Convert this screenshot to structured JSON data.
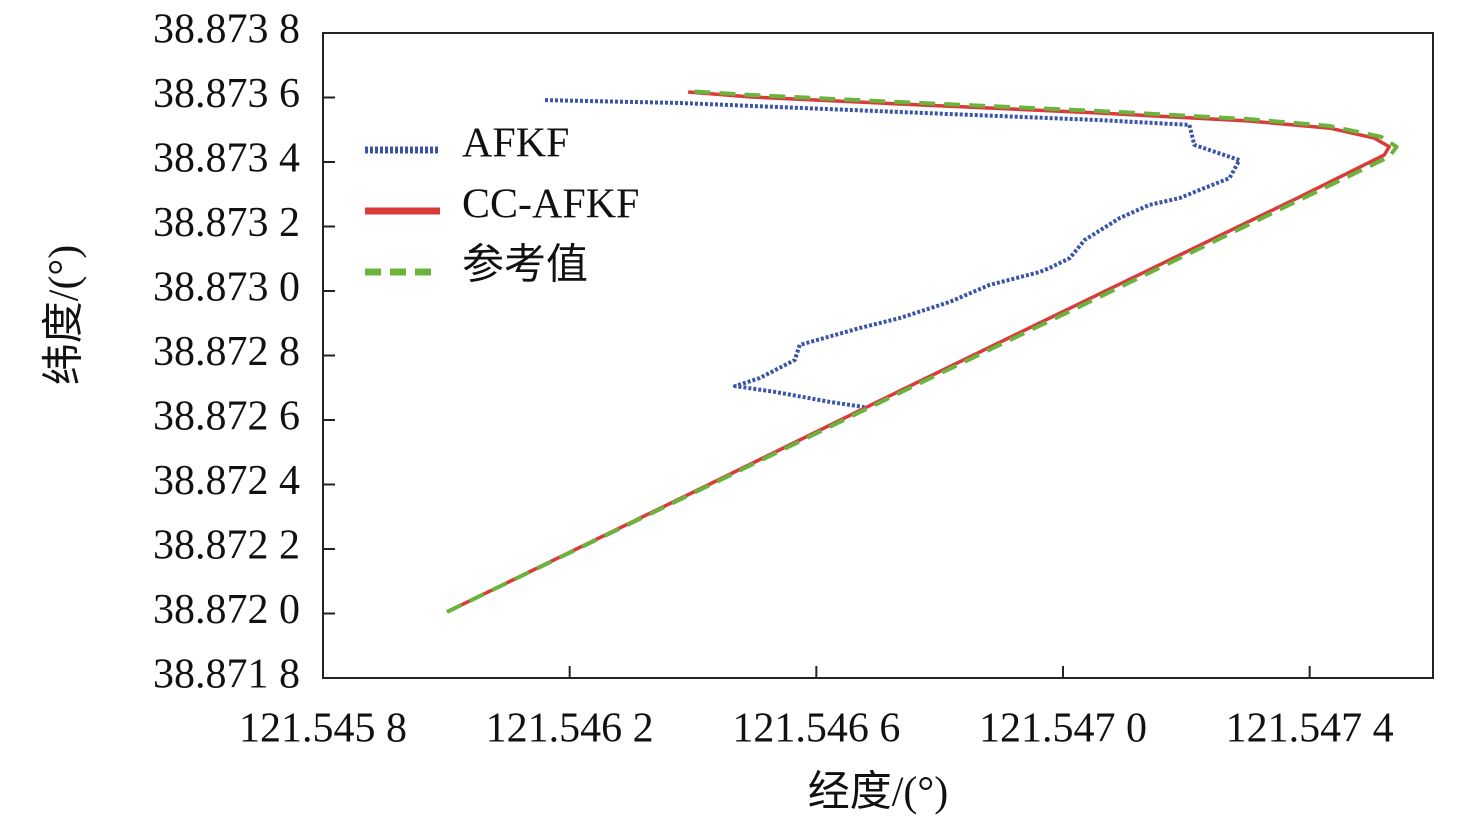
{
  "chart_data": {
    "type": "line",
    "xlabel": "经度/(°)",
    "ylabel": "纬度/(°)",
    "xlim": [
      121.5458,
      121.5476
    ],
    "ylim": [
      38.8718,
      38.8738
    ],
    "xticks": [
      {
        "value": 121.5458,
        "label": "121.545 8"
      },
      {
        "value": 121.5462,
        "label": "121.546 2"
      },
      {
        "value": 121.5466,
        "label": "121.546 6"
      },
      {
        "value": 121.547,
        "label": "121.547 0"
      },
      {
        "value": 121.5474,
        "label": "121.547 4"
      }
    ],
    "yticks": [
      {
        "value": 38.8718,
        "label": "38.871 8"
      },
      {
        "value": 38.872,
        "label": "38.872 0"
      },
      {
        "value": 38.8722,
        "label": "38.872 2"
      },
      {
        "value": 38.8724,
        "label": "38.872 4"
      },
      {
        "value": 38.8726,
        "label": "38.872 6"
      },
      {
        "value": 38.8728,
        "label": "38.872 8"
      },
      {
        "value": 38.873,
        "label": "38.873 0"
      },
      {
        "value": 38.8732,
        "label": "38.873 2"
      },
      {
        "value": 38.8734,
        "label": "38.873 4"
      },
      {
        "value": 38.8736,
        "label": "38.873 6"
      },
      {
        "value": 38.8738,
        "label": "38.873 8"
      }
    ],
    "legend": "upper-left",
    "series": [
      {
        "name": "AFKF",
        "color": "#3a55a8",
        "linestyle": "dotted",
        "x": [
          121.54616,
          121.546379,
          121.546735,
          121.547059,
          121.547205,
          121.547213,
          121.547286,
          121.54727,
          121.547221,
          121.547189,
          121.54714,
          121.547092,
          121.547035,
          121.547011,
          121.546978,
          121.546962,
          121.546881,
          121.546816,
          121.546735,
          121.54667,
          121.546573,
          121.546565,
          121.546508,
          121.546468,
          121.546533,
          121.546622,
          121.546678
        ],
        "y": [
          38.873592,
          38.873583,
          38.873555,
          38.87353,
          38.873515,
          38.873453,
          38.873406,
          38.87335,
          38.873313,
          38.873288,
          38.873267,
          38.873226,
          38.873158,
          38.873102,
          38.873071,
          38.873059,
          38.873019,
          38.872966,
          38.872916,
          38.872885,
          38.872833,
          38.872786,
          38.87273,
          38.872705,
          38.872687,
          38.872656,
          38.87264
        ]
      },
      {
        "name": "CC-AFKF",
        "color": "#d93a3a",
        "linestyle": "solid",
        "x": [
          121.546001,
          121.546411,
          121.546735,
          121.547059,
          121.547383,
          121.547521,
          121.547529,
          121.547505,
          121.547432,
          121.547302,
          121.547059,
          121.546735,
          121.546492,
          121.546392
        ],
        "y": [
          38.872005,
          38.872386,
          38.87269,
          38.872991,
          38.873291,
          38.873422,
          38.873447,
          38.873474,
          38.873505,
          38.873527,
          38.873552,
          38.87358,
          38.873602,
          38.873617
        ]
      },
      {
        "name": "参考值",
        "color": "#6ab43e",
        "linestyle": "dashed",
        "x": [
          121.546001,
          121.546411,
          121.546735,
          121.547059,
          121.547383,
          121.547529,
          121.547541,
          121.547516,
          121.547432,
          121.547302,
          121.547059,
          121.546735,
          121.546492,
          121.546392
        ],
        "y": [
          38.872005,
          38.872383,
          38.872684,
          38.872981,
          38.873282,
          38.873416,
          38.873447,
          38.873478,
          38.873512,
          38.873533,
          38.873558,
          38.873586,
          38.873608,
          38.87362
        ]
      }
    ]
  }
}
